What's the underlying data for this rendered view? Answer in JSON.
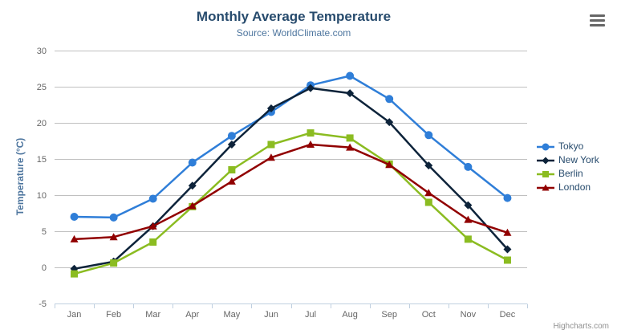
{
  "chart_data": {
    "type": "line",
    "title": "Monthly Average Temperature",
    "subtitle": "Source: WorldClimate.com",
    "xlabel": "",
    "ylabel": "Temperature (°C)",
    "categories": [
      "Jan",
      "Feb",
      "Mar",
      "Apr",
      "May",
      "Jun",
      "Jul",
      "Aug",
      "Sep",
      "Oct",
      "Nov",
      "Dec"
    ],
    "ylim": [
      -5,
      30
    ],
    "yticks": [
      -5,
      0,
      5,
      10,
      15,
      20,
      25,
      30
    ],
    "grid": true,
    "legend_position": "right",
    "series": [
      {
        "name": "Tokyo",
        "color": "#2f7ed8",
        "marker": "circle",
        "values": [
          7.0,
          6.9,
          9.5,
          14.5,
          18.2,
          21.5,
          25.2,
          26.5,
          23.3,
          18.3,
          13.9,
          9.6
        ]
      },
      {
        "name": "New York",
        "color": "#0d233a",
        "marker": "diamond",
        "values": [
          -0.2,
          0.8,
          5.7,
          11.3,
          17.0,
          22.0,
          24.8,
          24.1,
          20.1,
          14.1,
          8.6,
          2.5
        ]
      },
      {
        "name": "Berlin",
        "color": "#8bbc21",
        "marker": "square",
        "values": [
          -0.9,
          0.6,
          3.5,
          8.4,
          13.5,
          17.0,
          18.6,
          17.9,
          14.3,
          9.0,
          3.9,
          1.0
        ]
      },
      {
        "name": "London",
        "color": "#910000",
        "marker": "triangle",
        "values": [
          3.9,
          4.2,
          5.7,
          8.5,
          11.9,
          15.2,
          17.0,
          16.6,
          14.2,
          10.3,
          6.6,
          4.8
        ]
      }
    ]
  },
  "credits": {
    "text": "Highcharts.com"
  },
  "export_menu": {
    "icon": "hamburger-icon"
  },
  "colors": {
    "title": "#274b6d",
    "subtitle": "#4d759e",
    "axis_title": "#4d759e",
    "tick_label": "#666666",
    "grid_line": "#c0c0c0",
    "axis_line": "#c0d0e0",
    "legend_text": "#274b6d",
    "credits_text": "#909090",
    "export_icon": "#666666",
    "background": "#ffffff"
  }
}
